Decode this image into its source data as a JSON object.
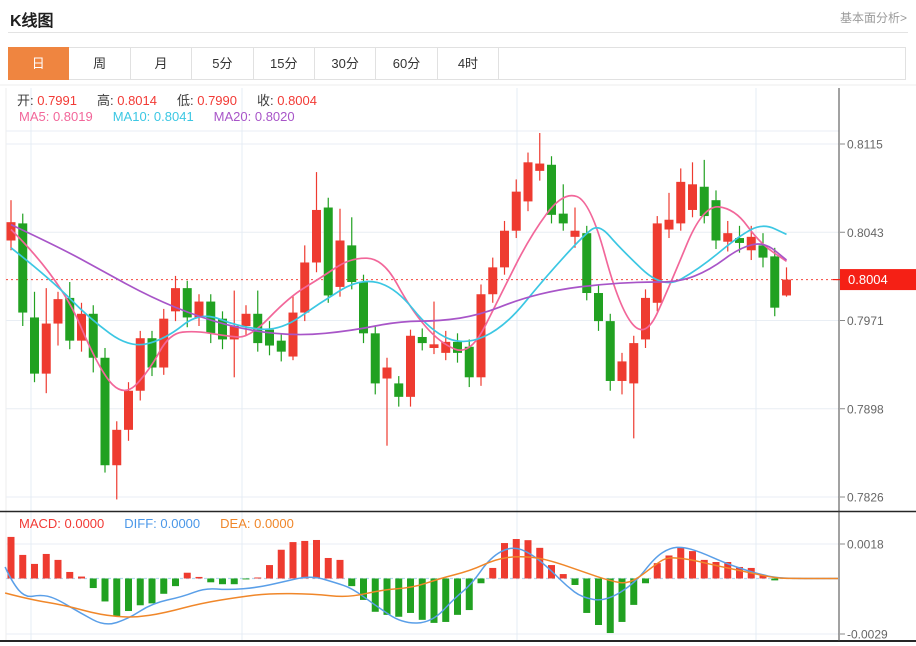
{
  "header": {
    "title": "K线图",
    "link": "基本面分析>"
  },
  "tabs": {
    "items": [
      "日",
      "周",
      "月",
      "5分",
      "15分",
      "30分",
      "60分",
      "4时"
    ],
    "active_index": 0
  },
  "legend_ohlc": {
    "label_color": "#3d3d3d",
    "value_color": "#f23a35",
    "items": [
      {
        "label": "开:",
        "value": "0.7991"
      },
      {
        "label": "高:",
        "value": "0.8014"
      },
      {
        "label": "低:",
        "value": "0.7990"
      },
      {
        "label": "收:",
        "value": "0.8004"
      }
    ]
  },
  "legend_ma": {
    "items": [
      {
        "label": "MA5:",
        "value": "0.8019",
        "color": "#f2679a"
      },
      {
        "label": "MA10:",
        "value": "0.8041",
        "color": "#3cc7e3"
      },
      {
        "label": "MA20:",
        "value": "0.8020",
        "color": "#a855c8"
      }
    ]
  },
  "legend_macd": {
    "items": [
      {
        "label": "MACD:",
        "value": "0.0000",
        "color": "#f23a35"
      },
      {
        "label": "DIFF:",
        "value": "0.0000",
        "color": "#4a97e8"
      },
      {
        "label": "DEA:",
        "value": "0.0000",
        "color": "#f0872a"
      }
    ]
  },
  "chart_data": {
    "type": "candlestick",
    "title": "K线图 daily candles with MA5/MA10/MA20 overlays and MACD sub-panel",
    "price_axis": {
      "ticks": [
        0.8115,
        0.8043,
        0.7971,
        0.7898,
        0.7826
      ],
      "current_price": 0.8004
    },
    "macd_axis": {
      "ticks": [
        0.0018,
        -0.0029
      ]
    },
    "colors": {
      "up": "#ee3b30",
      "down": "#21a121",
      "ma5": "#f2679a",
      "ma10": "#3cc7e3",
      "ma20": "#a855c8",
      "diff": "#5a9fe8",
      "dea": "#f0872a",
      "grid": "#e9eef4",
      "grid_v": "#e4ecf4",
      "dotted": "#f5453d",
      "tag_bg": "#f52015",
      "zero_dash": "#b5d8f0",
      "divider": "#262626",
      "axis_line": "#444444",
      "tick_label": "#666666",
      "tick_mark": "#888888"
    },
    "candles": [
      [
        0.8036,
        0.8069,
        0.8028,
        0.8051
      ],
      [
        0.805,
        0.8058,
        0.7966,
        0.7977
      ],
      [
        0.7973,
        0.7994,
        0.792,
        0.7927
      ],
      [
        0.7927,
        0.7997,
        0.7911,
        0.7968
      ],
      [
        0.7968,
        0.7994,
        0.795,
        0.7988
      ],
      [
        0.7989,
        0.8002,
        0.7947,
        0.7954
      ],
      [
        0.7954,
        0.7985,
        0.7945,
        0.7976
      ],
      [
        0.7976,
        0.7983,
        0.7928,
        0.794
      ],
      [
        0.794,
        0.7948,
        0.7846,
        0.7852
      ],
      [
        0.7852,
        0.7888,
        0.7824,
        0.7881
      ],
      [
        0.7881,
        0.792,
        0.7872,
        0.7913
      ],
      [
        0.7913,
        0.7962,
        0.7905,
        0.7956
      ],
      [
        0.7956,
        0.7962,
        0.7925,
        0.7932
      ],
      [
        0.7932,
        0.798,
        0.7926,
        0.7972
      ],
      [
        0.7978,
        0.8007,
        0.797,
        0.7997
      ],
      [
        0.7997,
        0.8003,
        0.7965,
        0.7973
      ],
      [
        0.7973,
        0.7992,
        0.7966,
        0.7986
      ],
      [
        0.7986,
        0.7992,
        0.7952,
        0.796
      ],
      [
        0.7972,
        0.7978,
        0.7947,
        0.7955
      ],
      [
        0.7955,
        0.7995,
        0.7924,
        0.7966
      ],
      [
        0.7966,
        0.7983,
        0.7958,
        0.7976
      ],
      [
        0.7976,
        0.7995,
        0.7945,
        0.7952
      ],
      [
        0.7963,
        0.797,
        0.7942,
        0.795
      ],
      [
        0.7954,
        0.796,
        0.7937,
        0.7945
      ],
      [
        0.7941,
        0.7991,
        0.7938,
        0.7977
      ],
      [
        0.7977,
        0.8032,
        0.797,
        0.8018
      ],
      [
        0.8018,
        0.8092,
        0.801,
        0.8061
      ],
      [
        0.8063,
        0.8071,
        0.7985,
        0.7991
      ],
      [
        0.7998,
        0.8062,
        0.799,
        0.8036
      ],
      [
        0.8032,
        0.8055,
        0.7996,
        0.8002
      ],
      [
        0.8002,
        0.8008,
        0.7952,
        0.796
      ],
      [
        0.796,
        0.7966,
        0.791,
        0.7919
      ],
      [
        0.7923,
        0.794,
        0.7868,
        0.7932
      ],
      [
        0.7919,
        0.7925,
        0.79,
        0.7908
      ],
      [
        0.7908,
        0.7963,
        0.79,
        0.7958
      ],
      [
        0.7957,
        0.7964,
        0.7946,
        0.7952
      ],
      [
        0.7948,
        0.7986,
        0.7943,
        0.7951
      ],
      [
        0.7944,
        0.7962,
        0.7938,
        0.7953
      ],
      [
        0.7953,
        0.796,
        0.7936,
        0.7944
      ],
      [
        0.7949,
        0.7955,
        0.7916,
        0.7924
      ],
      [
        0.7924,
        0.8,
        0.7917,
        0.7992
      ],
      [
        0.7992,
        0.8022,
        0.7985,
        0.8014
      ],
      [
        0.8014,
        0.8052,
        0.8008,
        0.8044
      ],
      [
        0.8044,
        0.8086,
        0.8038,
        0.8076
      ],
      [
        0.8068,
        0.8108,
        0.806,
        0.81
      ],
      [
        0.8093,
        0.8124,
        0.8085,
        0.8099
      ],
      [
        0.8098,
        0.8105,
        0.805,
        0.8057
      ],
      [
        0.8058,
        0.8082,
        0.8044,
        0.805
      ],
      [
        0.8039,
        0.8063,
        0.803,
        0.8044
      ],
      [
        0.8042,
        0.8048,
        0.7987,
        0.7993
      ],
      [
        0.7993,
        0.8,
        0.7962,
        0.797
      ],
      [
        0.797,
        0.7976,
        0.7913,
        0.7921
      ],
      [
        0.7921,
        0.7944,
        0.791,
        0.7937
      ],
      [
        0.7919,
        0.7958,
        0.7874,
        0.7952
      ],
      [
        0.7955,
        0.7996,
        0.7948,
        0.7989
      ],
      [
        0.7985,
        0.8056,
        0.7978,
        0.805
      ],
      [
        0.8045,
        0.8075,
        0.8038,
        0.8053
      ],
      [
        0.805,
        0.8095,
        0.8044,
        0.8084
      ],
      [
        0.8061,
        0.81,
        0.8055,
        0.8082
      ],
      [
        0.808,
        0.8102,
        0.805,
        0.8056
      ],
      [
        0.8069,
        0.8077,
        0.8029,
        0.8036
      ],
      [
        0.8035,
        0.8052,
        0.8027,
        0.8042
      ],
      [
        0.8038,
        0.8048,
        0.8026,
        0.8034
      ],
      [
        0.8028,
        0.8048,
        0.802,
        0.8039
      ],
      [
        0.8032,
        0.8042,
        0.8014,
        0.8022
      ],
      [
        0.8023,
        0.803,
        0.7974,
        0.7981
      ],
      [
        0.7991,
        0.8014,
        0.799,
        0.8004
      ]
    ],
    "ma5_points": [
      [
        0,
        0.8045
      ],
      [
        4.2,
        0.8005
      ],
      [
        7.6,
        0.7928
      ],
      [
        9.7,
        0.7908
      ],
      [
        11.8,
        0.793
      ],
      [
        13.5,
        0.796
      ],
      [
        15.7,
        0.7962
      ],
      [
        18.2,
        0.7958
      ],
      [
        20.3,
        0.7956
      ],
      [
        23.7,
        0.799
      ],
      [
        26.3,
        0.8005
      ],
      [
        28.9,
        0.8022
      ],
      [
        31.7,
        0.8021
      ],
      [
        34,
        0.798
      ],
      [
        36.5,
        0.7952
      ],
      [
        39.1,
        0.7942
      ],
      [
        41.6,
        0.799
      ],
      [
        44.2,
        0.804
      ],
      [
        47,
        0.8076
      ],
      [
        49.3,
        0.8068
      ],
      [
        51.8,
        0.798
      ],
      [
        54,
        0.7955
      ],
      [
        56.1,
        0.8
      ],
      [
        58.9,
        0.8065
      ],
      [
        61.6,
        0.8062
      ],
      [
        63.7,
        0.8034
      ],
      [
        66,
        0.8019
      ]
    ],
    "ma10_points": [
      [
        0,
        0.803
      ],
      [
        3.3,
        0.8005
      ],
      [
        6.7,
        0.7972
      ],
      [
        10.1,
        0.7948
      ],
      [
        13.1,
        0.7955
      ],
      [
        16.1,
        0.7978
      ],
      [
        19.5,
        0.7965
      ],
      [
        22.9,
        0.7962
      ],
      [
        26.3,
        0.7985
      ],
      [
        29.7,
        0.8005
      ],
      [
        32.7,
        0.7998
      ],
      [
        35.7,
        0.7962
      ],
      [
        38.6,
        0.795
      ],
      [
        42,
        0.7965
      ],
      [
        45.4,
        0.8005
      ],
      [
        48.9,
        0.8042
      ],
      [
        50.1,
        0.8049
      ],
      [
        51.8,
        0.803
      ],
      [
        55.5,
        0.7996
      ],
      [
        58.6,
        0.8013
      ],
      [
        62,
        0.804
      ],
      [
        64,
        0.805
      ],
      [
        66,
        0.8041
      ]
    ],
    "ma20_points": [
      [
        0,
        0.8049
      ],
      [
        4.2,
        0.803
      ],
      [
        7.6,
        0.8012
      ],
      [
        11.8,
        0.799
      ],
      [
        16.1,
        0.7973
      ],
      [
        20.3,
        0.7962
      ],
      [
        24.6,
        0.7958
      ],
      [
        28.9,
        0.7962
      ],
      [
        33.1,
        0.797
      ],
      [
        36.5,
        0.797
      ],
      [
        39.9,
        0.7975
      ],
      [
        43.3,
        0.7988
      ],
      [
        46.7,
        0.7996
      ],
      [
        50.1,
        0.8
      ],
      [
        53.5,
        0.8002
      ],
      [
        56.9,
        0.8002
      ],
      [
        59.5,
        0.8012
      ],
      [
        62,
        0.803
      ],
      [
        64.1,
        0.8035
      ],
      [
        66,
        0.802
      ]
    ],
    "macd_histogram": [
      0.00217,
      0.00123,
      0.00076,
      0.00128,
      0.00097,
      0.00034,
      0.0001,
      -0.0005,
      -0.0012,
      -0.00196,
      -0.0017,
      -0.0014,
      -0.0013,
      -0.0008,
      -0.0004,
      0.0003,
      8e-05,
      -0.0002,
      -0.0003,
      -0.0003,
      -5e-05,
      5e-05,
      0.0007,
      0.0015,
      0.0019,
      0.00196,
      0.00201,
      0.00107,
      0.00097,
      -0.0004,
      -0.00112,
      -0.00174,
      -0.0019,
      -0.002,
      -0.0018,
      -0.00216,
      -0.00232,
      -0.00227,
      -0.0019,
      -0.00165,
      -0.00025,
      0.00055,
      0.00185,
      0.00206,
      0.002,
      0.0016,
      0.0007,
      0.00023,
      -0.00034,
      -0.0018,
      -0.00243,
      -0.00285,
      -0.00227,
      -0.00138,
      -0.00025,
      0.0008,
      0.0012,
      0.0016,
      0.00143,
      0.00097,
      0.00086,
      0.00086,
      0.0006,
      0.00055,
      0.00018,
      -0.0001,
      5e-05
    ],
    "diff_points": [
      [
        -0.5,
        0.0006
      ],
      [
        0.1,
        -0.0002
      ],
      [
        1.2,
        -0.001
      ],
      [
        2.5,
        -0.00085
      ],
      [
        3.7,
        -0.001
      ],
      [
        5.9,
        -0.0018
      ],
      [
        8,
        -0.0025
      ],
      [
        10,
        -0.0021
      ],
      [
        12,
        -0.0013
      ],
      [
        14.6,
        -0.00095
      ],
      [
        16.5,
        -0.0005
      ],
      [
        18.5,
        -0.0006
      ],
      [
        21,
        -0.00047
      ],
      [
        23,
        -0.0002
      ],
      [
        25.5,
        0.00015
      ],
      [
        27.5,
        -0.0002
      ],
      [
        29,
        -0.0005
      ],
      [
        31,
        -0.0014
      ],
      [
        33.3,
        -0.00235
      ],
      [
        35.8,
        -0.0023
      ],
      [
        37.8,
        -0.001
      ],
      [
        39.2,
        -0.0003
      ],
      [
        40.8,
        0.0011
      ],
      [
        42.6,
        0.0017
      ],
      [
        44.3,
        0.0013
      ],
      [
        46,
        0.0004
      ],
      [
        47.3,
        -0.0004
      ],
      [
        48.6,
        -0.001
      ],
      [
        50.6,
        -0.0012
      ],
      [
        53.1,
        -0.00025
      ],
      [
        54.8,
        0.0011
      ],
      [
        56.1,
        0.0016
      ],
      [
        57.2,
        0.00165
      ],
      [
        58.6,
        0.0014
      ],
      [
        60.8,
        0.0008
      ],
      [
        62.7,
        0.0004
      ],
      [
        63.9,
        0.0002
      ],
      [
        65,
        5e-05
      ],
      [
        66.5,
        0
      ],
      [
        70.5,
        0
      ]
    ],
    "dea_points": [
      [
        -0.5,
        -0.00076
      ],
      [
        1.6,
        -0.0011
      ],
      [
        4.6,
        -0.0014
      ],
      [
        7.6,
        -0.0019
      ],
      [
        10.4,
        -0.00206
      ],
      [
        13.1,
        -0.0018
      ],
      [
        16.1,
        -0.0013
      ],
      [
        19.5,
        -0.00096
      ],
      [
        22,
        -0.00078
      ],
      [
        25.7,
        -0.0008
      ],
      [
        28.7,
        -0.001
      ],
      [
        31.5,
        -0.0006
      ],
      [
        34.2,
        -0.00048
      ],
      [
        36.5,
        0
      ],
      [
        39.1,
        0.0004
      ],
      [
        41.2,
        0.001
      ],
      [
        43.1,
        0.00117
      ],
      [
        45.4,
        0.00105
      ],
      [
        48.7,
        0.00035
      ],
      [
        51,
        -0.00013
      ],
      [
        52.7,
        -0.0003
      ],
      [
        55,
        0.0008
      ],
      [
        55.9,
        0.00112
      ],
      [
        57.8,
        0.001
      ],
      [
        59.8,
        0.0007
      ],
      [
        62.6,
        0.00034
      ],
      [
        65,
        2e-05
      ],
      [
        66.5,
        0
      ],
      [
        70.5,
        0
      ]
    ]
  }
}
